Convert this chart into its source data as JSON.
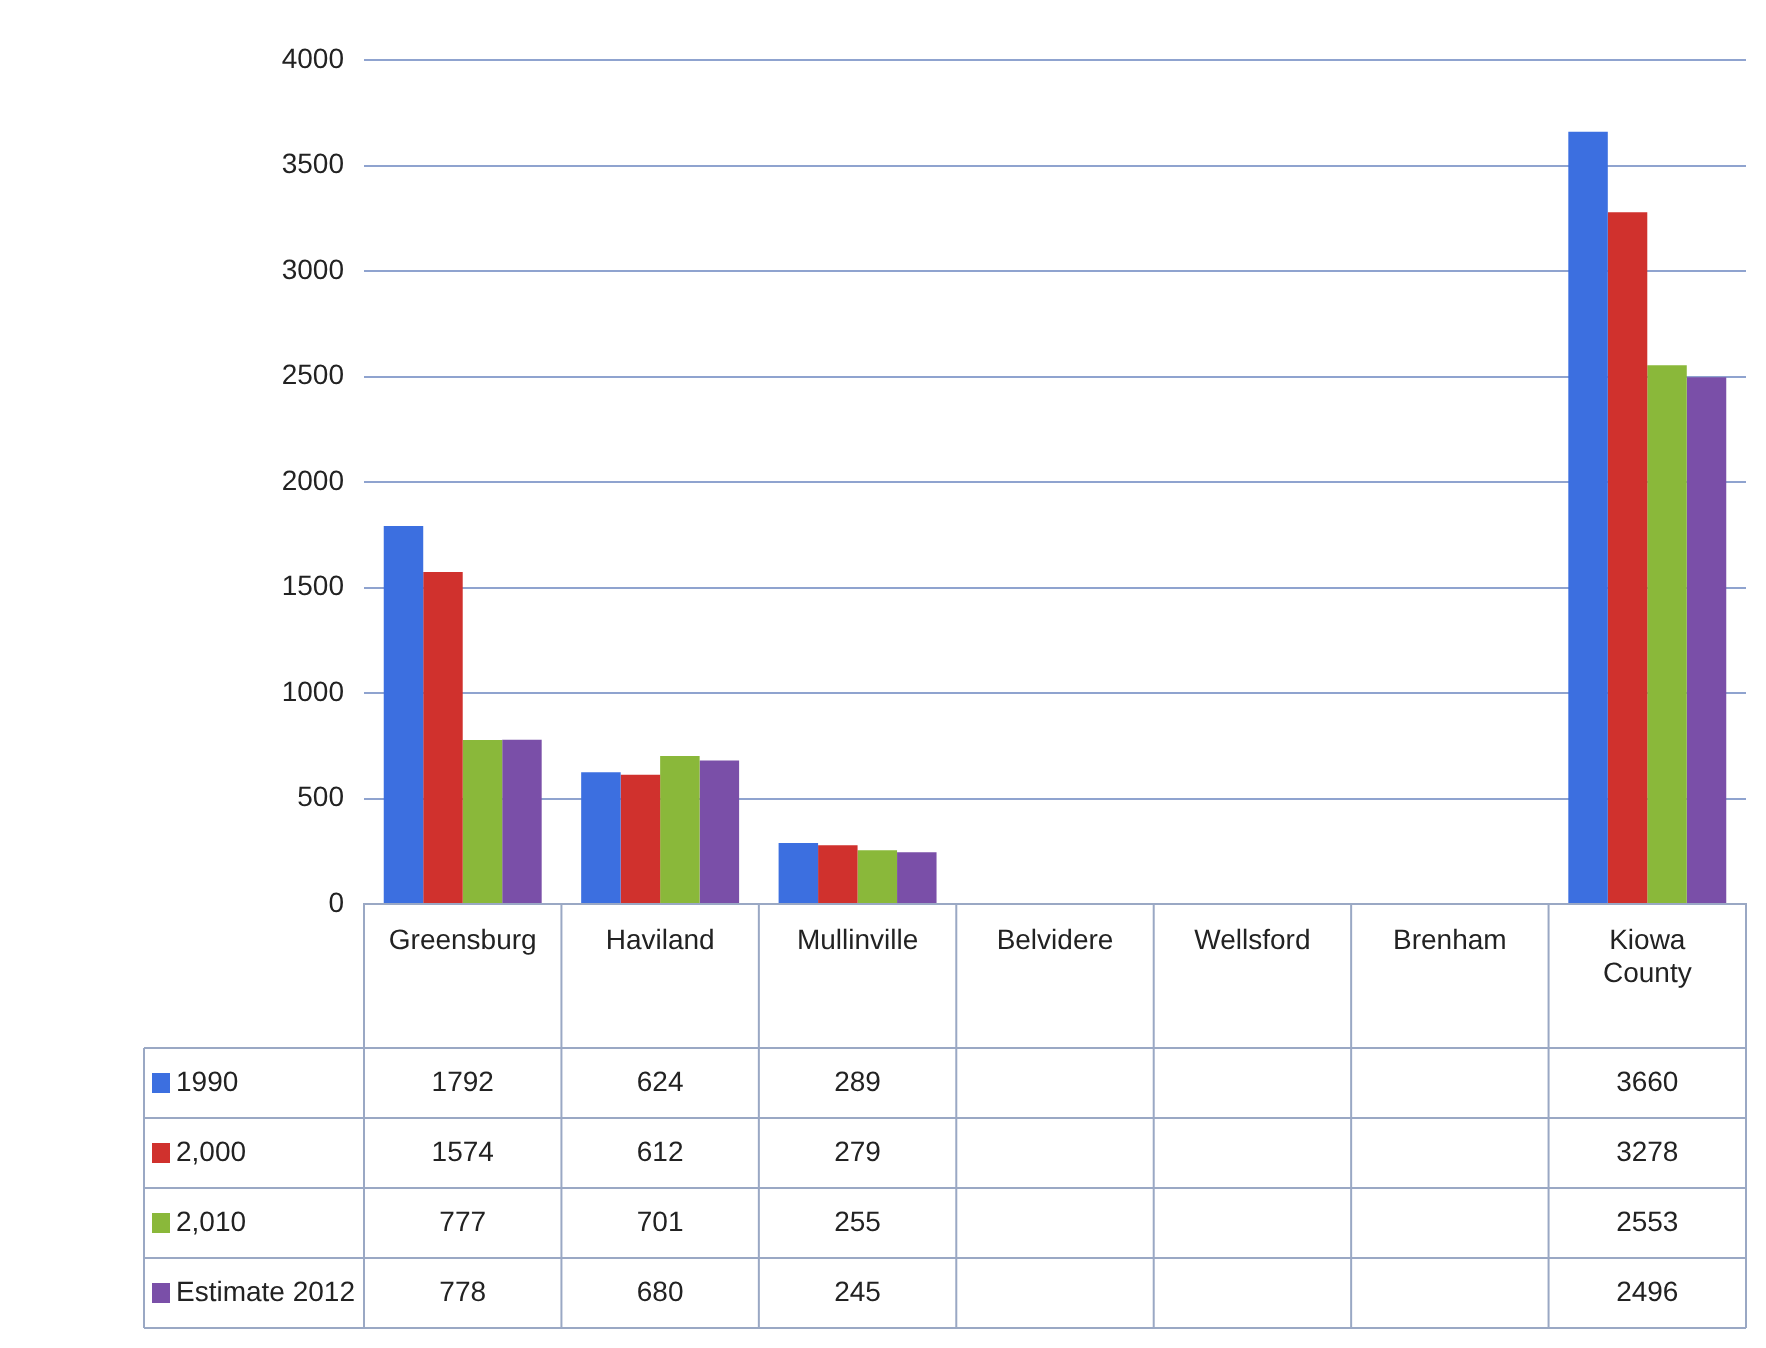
{
  "chart_data": {
    "type": "bar",
    "categories": [
      "Greensburg",
      "Haviland",
      "Mullinville",
      "Belvidere",
      "Wellsford",
      "Brenham",
      "Kiowa County"
    ],
    "series": [
      {
        "name": "1990",
        "color": "#3c6fe0",
        "values": [
          1792,
          624,
          289,
          null,
          null,
          null,
          3660
        ]
      },
      {
        "name": "2,000",
        "color": "#d0312d",
        "values": [
          1574,
          612,
          279,
          null,
          null,
          null,
          3278
        ]
      },
      {
        "name": "2,010",
        "color": "#8ab83a",
        "values": [
          777,
          701,
          255,
          null,
          null,
          null,
          2553
        ]
      },
      {
        "name": "Estimate 2012",
        "color": "#7a4fa8",
        "values": [
          778,
          680,
          245,
          null,
          null,
          null,
          2496
        ]
      }
    ],
    "ylim": [
      0,
      4000
    ],
    "yticks": [
      0,
      500,
      1000,
      1500,
      2000,
      2500,
      3000,
      3500,
      4000
    ],
    "grid": "y",
    "legend": "bottom",
    "data_labels": true
  }
}
